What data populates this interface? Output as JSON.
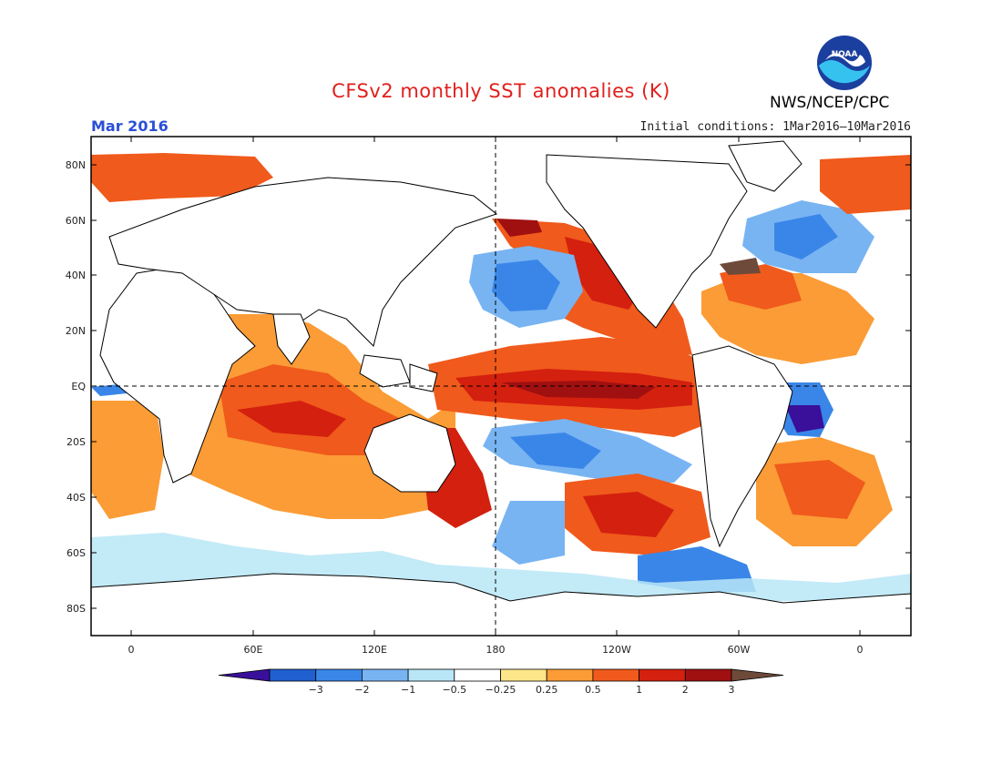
{
  "header": {
    "title": "CFSv2 monthly SST anomalies (K)",
    "month": "Mar 2016",
    "initial_conditions": "Initial conditions: 1Mar2016–10Mar2016",
    "agency": "NWS/NCEP/CPC",
    "logo_text": "NOAA"
  },
  "axes": {
    "lat_labels": [
      "80N",
      "60N",
      "40N",
      "20N",
      "EQ",
      "20S",
      "40S",
      "60S",
      "80S"
    ],
    "lon_labels": [
      "0",
      "60E",
      "120E",
      "180",
      "120W",
      "60W",
      "0"
    ]
  },
  "colorbar": {
    "labels": [
      "−3",
      "−2",
      "−1",
      "−0.5",
      "−0.25",
      "0.25",
      "0.5",
      "1",
      "2",
      "3"
    ],
    "colors": [
      "#3a0f9a",
      "#1f5fd0",
      "#3a86e8",
      "#78b4f2",
      "#b8e6f6",
      "#ffffff",
      "#fde58a",
      "#fb9c36",
      "#f05a1c",
      "#d4200f",
      "#a01010",
      "#6e4a3a"
    ]
  },
  "map": {
    "land_color": "#ffffff",
    "colors": {
      "warm1": "#fde58a",
      "warm2": "#fb9c36",
      "warm3": "#f05a1c",
      "warm4": "#d4200f",
      "warm5": "#a01010",
      "warm6": "#6e4a3a",
      "cool1": "#b8e6f6",
      "cool2": "#78b4f2",
      "cool3": "#3a86e8",
      "cool4": "#1f5fd0",
      "cool5": "#3a0f9a"
    }
  }
}
